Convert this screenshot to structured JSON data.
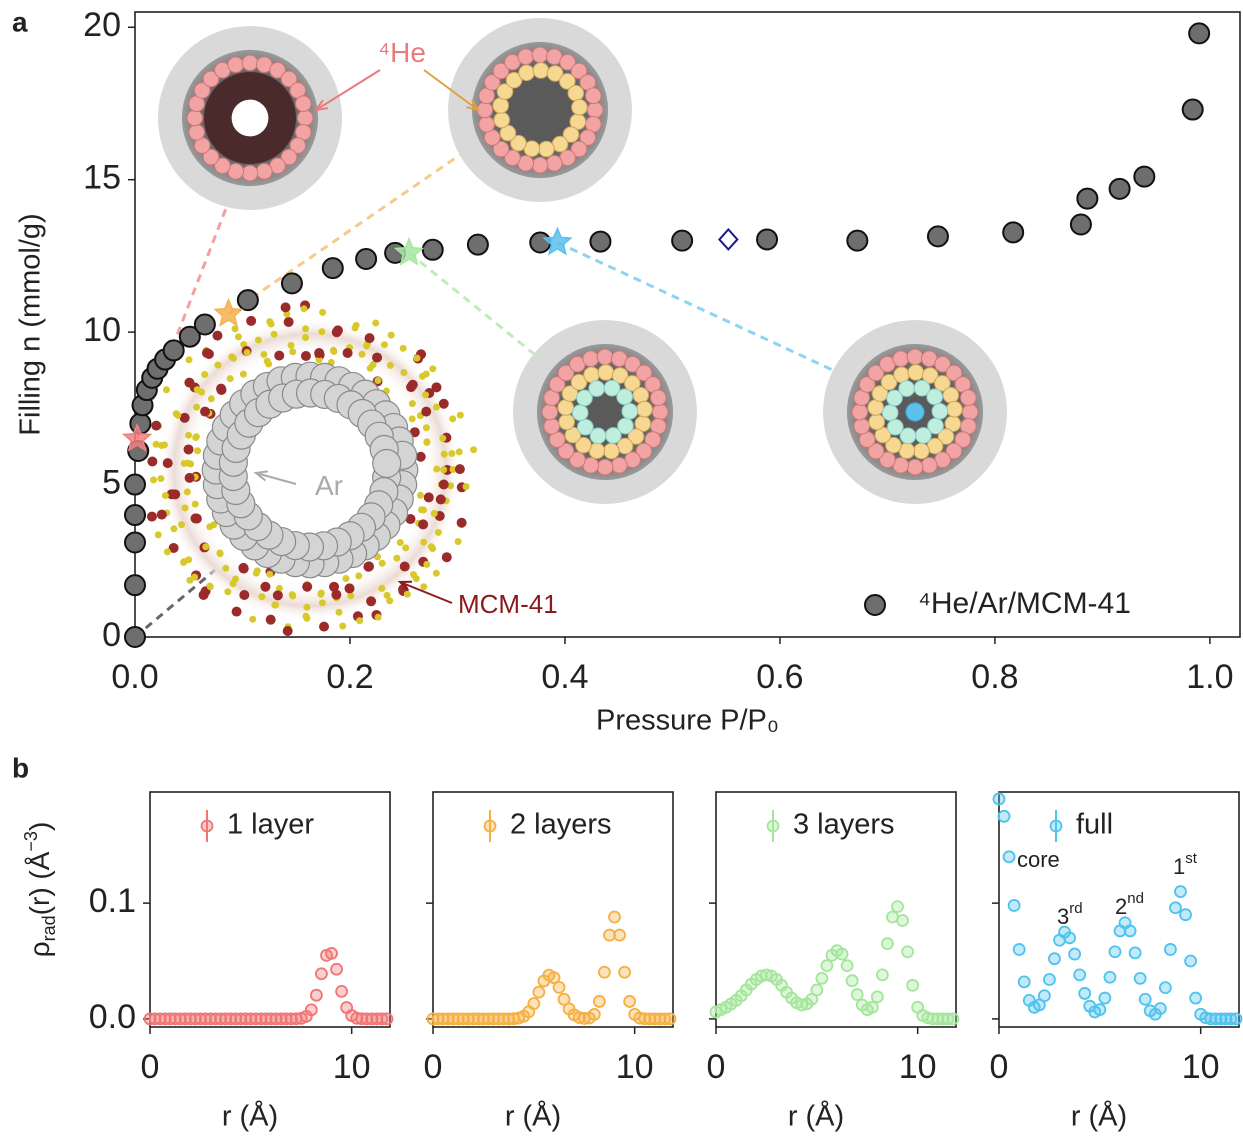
{
  "chart_data": [
    {
      "type": "scatter",
      "panel_label": "a",
      "xlabel": "Pressure  P/P₀",
      "ylabel": "Filling  n (mmol/g)",
      "xlim": [
        0,
        1.028
      ],
      "ylim": [
        0,
        20.5
      ],
      "xticks": [
        {
          "value": 0,
          "label": "0.0"
        },
        0.2,
        0.4,
        0.6,
        0.8,
        {
          "value": 1,
          "label": "1.0"
        }
      ],
      "yticks": [
        0,
        5,
        10,
        15,
        20
      ],
      "legend": "lower right",
      "x": [
        0,
        0,
        0,
        0,
        0,
        0.003,
        0.005,
        0.007,
        0.011,
        0.016,
        0.021,
        0.028,
        0.036,
        0.051,
        0.065,
        0.105,
        0.146,
        0.184,
        0.215,
        0.242,
        0.277,
        0.319,
        0.377,
        0.433,
        0.509,
        0.588,
        0.672,
        0.747,
        0.817,
        0.88,
        0.886,
        0.916,
        0.939,
        0.984,
        0.99
      ],
      "series": [
        {
          "name": "⁴He/Ar/MCM-41",
          "color": "#6e6e6e",
          "values": [
            0,
            1.7,
            3.1,
            4.0,
            5.0,
            6.1,
            7.0,
            7.6,
            8.1,
            8.5,
            8.8,
            9.1,
            9.4,
            9.85,
            10.25,
            11.05,
            11.6,
            12.1,
            12.4,
            12.6,
            12.7,
            12.87,
            12.94,
            12.97,
            13.0,
            13.04,
            13.0,
            13.14,
            13.27,
            13.53,
            14.38,
            14.7,
            15.1,
            17.3,
            19.8
          ]
        }
      ],
      "markers": [
        {
          "x": 0.002,
          "y": 6.5,
          "color": "#f08080",
          "shape": "star"
        },
        {
          "x": 0.087,
          "y": 10.6,
          "color": "#f5b050",
          "shape": "star"
        },
        {
          "x": 0.255,
          "y": 12.6,
          "color": "#a8e6a0",
          "shape": "star"
        },
        {
          "x": 0.393,
          "y": 12.94,
          "color": "#5bc0eb",
          "shape": "star"
        },
        {
          "x": 0.552,
          "y": 13.04,
          "color": "#1a1a8c",
          "shape": "diamond"
        }
      ],
      "annotations": [
        {
          "text": "⁴He"
        },
        {
          "text": "Ar"
        },
        {
          "text": "MCM-41"
        }
      ]
    },
    {
      "type": "scatter",
      "panel_label": "b",
      "xlabel": "r (Å)",
      "ylabel_parts": [
        "ρ",
        "rad",
        "(r) (Å",
        "−3",
        ")"
      ],
      "xlim": [
        0,
        11.9
      ],
      "ylim": [
        -0.007,
        0.196
      ],
      "xticks": [
        0,
        10
      ],
      "yticks": [
        {
          "value": 0,
          "label": "0.0"
        },
        0.1
      ],
      "show_ytick_labels": true,
      "legend": "upper left",
      "x": [
        0,
        0.25,
        0.5,
        0.75,
        1,
        1.25,
        1.5,
        1.75,
        2,
        2.25,
        2.5,
        2.75,
        3,
        3.25,
        3.5,
        3.75,
        4,
        4.25,
        4.5,
        4.75,
        5,
        5.25,
        5.5,
        5.75,
        6,
        6.25,
        6.5,
        6.75,
        7,
        7.25,
        7.5,
        7.75,
        8,
        8.25,
        8.5,
        8.75,
        9,
        9.25,
        9.5,
        9.75,
        10,
        10.25,
        10.5,
        10.75,
        11,
        11.25,
        11.5,
        11.75
      ],
      "series": [
        {
          "name": "1 layer",
          "color": "#f07575",
          "values": [
            0,
            0,
            0,
            0,
            0,
            0,
            0,
            0,
            0,
            0,
            0,
            0,
            0,
            0,
            0,
            0,
            0,
            0,
            0,
            0,
            0,
            0,
            0,
            0,
            0,
            0,
            0,
            0,
            0,
            0.0001,
            0.0005,
            0.0022,
            0.0078,
            0.0205,
            0.039,
            0.0549,
            0.0566,
            0.0429,
            0.0238,
            0.0098,
            0.0029,
            0.0006,
            0.0001,
            0,
            0,
            0,
            0,
            0
          ]
        }
      ]
    },
    {
      "type": "scatter",
      "xlabel": "r (Å)",
      "xlim": [
        0,
        11.9
      ],
      "ylim": [
        -0.007,
        0.196
      ],
      "xticks": [
        0,
        10
      ],
      "yticks": [
        0,
        0.1
      ],
      "show_ytick_labels": false,
      "legend": "upper left",
      "x": [
        0,
        0.25,
        0.5,
        0.75,
        1,
        1.25,
        1.5,
        1.75,
        2,
        2.25,
        2.5,
        2.75,
        3,
        3.25,
        3.5,
        3.75,
        4,
        4.25,
        4.5,
        4.75,
        5,
        5.25,
        5.5,
        5.75,
        6,
        6.25,
        6.5,
        6.75,
        7,
        7.25,
        7.5,
        7.75,
        8,
        8.25,
        8.5,
        8.75,
        9,
        9.25,
        9.5,
        9.75,
        10,
        10.25,
        10.5,
        10.75,
        11,
        11.25,
        11.5,
        11.75
      ],
      "series": [
        {
          "name": "2 layers",
          "color": "#f5b041",
          "values": [
            0,
            0,
            0,
            0,
            0,
            0,
            0,
            0,
            0,
            0,
            0,
            0,
            0,
            0,
            0,
            0,
            0.0002,
            0.0007,
            0.0023,
            0.0062,
            0.0132,
            0.0231,
            0.0328,
            0.0378,
            0.0356,
            0.0272,
            0.0169,
            0.0086,
            0.0035,
            0.0012,
            0.0004,
            0.0008,
            0.0039,
            0.0151,
            0.0403,
            0.0724,
            0.088,
            0.0724,
            0.0403,
            0.0151,
            0.0039,
            0.0007,
            0.0001,
            0,
            0,
            0,
            0,
            0
          ]
        }
      ]
    },
    {
      "type": "scatter",
      "xlabel": "r (Å)",
      "xlim": [
        0,
        11.9
      ],
      "ylim": [
        -0.007,
        0.196
      ],
      "xticks": [
        0,
        10
      ],
      "yticks": [
        0,
        0.1
      ],
      "show_ytick_labels": false,
      "legend": "upper left",
      "x": [
        0,
        0.25,
        0.5,
        0.75,
        1,
        1.25,
        1.5,
        1.75,
        2,
        2.25,
        2.5,
        2.75,
        3,
        3.25,
        3.5,
        3.75,
        4,
        4.25,
        4.5,
        4.75,
        5,
        5.25,
        5.5,
        5.75,
        6,
        6.25,
        6.5,
        6.75,
        7,
        7.25,
        7.5,
        7.75,
        8,
        8.25,
        8.5,
        8.75,
        9,
        9.25,
        9.5,
        9.75,
        10,
        10.25,
        10.5,
        10.75,
        11,
        11.25,
        11.5,
        11.75
      ],
      "series": [
        {
          "name": "3 layers",
          "color": "#a3e69a",
          "values": [
            0.006,
            0.008,
            0.01,
            0.013,
            0.016,
            0.02,
            0.025,
            0.03,
            0.034,
            0.037,
            0.038,
            0.037,
            0.034,
            0.029,
            0.023,
            0.018,
            0.014,
            0.012,
            0.013,
            0.017,
            0.025,
            0.035,
            0.046,
            0.055,
            0.059,
            0.056,
            0.046,
            0.033,
            0.021,
            0.012,
            0.008,
            0.01,
            0.019,
            0.038,
            0.065,
            0.088,
            0.097,
            0.085,
            0.058,
            0.029,
            0.01,
            0.003,
            0.001,
            0,
            0,
            0,
            0,
            0
          ]
        }
      ]
    },
    {
      "type": "scatter",
      "xlabel": "r (Å)",
      "xlim": [
        0,
        11.9
      ],
      "ylim": [
        -0.007,
        0.196
      ],
      "xticks": [
        0,
        10
      ],
      "yticks": [
        0,
        0.1
      ],
      "show_ytick_labels": false,
      "legend": "upper left",
      "x": [
        0,
        0.25,
        0.5,
        0.75,
        1,
        1.25,
        1.5,
        1.75,
        2,
        2.25,
        2.5,
        2.75,
        3,
        3.25,
        3.5,
        3.75,
        4,
        4.25,
        4.5,
        4.75,
        5,
        5.25,
        5.5,
        5.75,
        6,
        6.25,
        6.5,
        6.75,
        7,
        7.25,
        7.5,
        7.75,
        8,
        8.25,
        8.5,
        8.75,
        9,
        9.25,
        9.5,
        9.75,
        10,
        10.25,
        10.5,
        10.75,
        11,
        11.25,
        11.5,
        11.75
      ],
      "series": [
        {
          "name": "full",
          "color": "#4fc3ee",
          "values": [
            0.19,
            0.175,
            0.14,
            0.098,
            0.06,
            0.032,
            0.016,
            0.01,
            0.012,
            0.02,
            0.034,
            0.052,
            0.068,
            0.075,
            0.07,
            0.056,
            0.038,
            0.022,
            0.011,
            0.006,
            0.008,
            0.018,
            0.036,
            0.058,
            0.076,
            0.083,
            0.076,
            0.057,
            0.035,
            0.017,
            0.007,
            0.004,
            0.009,
            0.027,
            0.06,
            0.096,
            0.11,
            0.09,
            0.05,
            0.018,
            0.004,
            0.001,
            0,
            0,
            0,
            0,
            0,
            0
          ]
        }
      ],
      "annotations": [
        {
          "text": "core"
        },
        {
          "text": "3",
          "sup": "rd"
        },
        {
          "text": "2",
          "sup": "nd"
        },
        {
          "text": "1",
          "sup": "st"
        }
      ]
    }
  ]
}
